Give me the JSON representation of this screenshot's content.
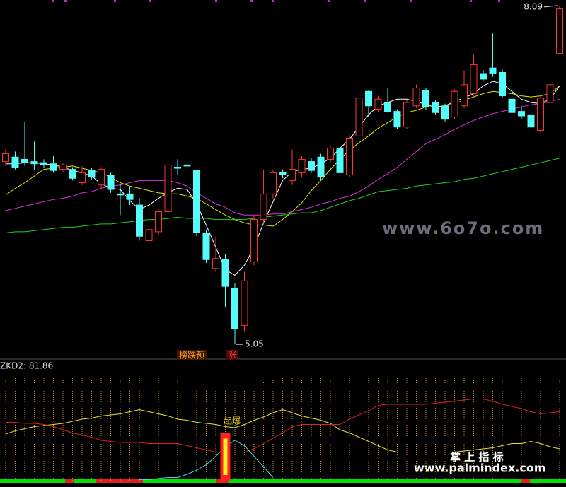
{
  "chart_data": [
    {
      "type": "candlestick",
      "open": [
        6.69,
        6.73,
        6.71,
        6.69,
        6.68,
        6.67,
        6.62,
        6.62,
        6.5,
        6.61,
        6.48,
        6.57,
        6.4,
        6.4,
        6.3,
        5.98,
        6.06,
        6.24,
        6.64,
        6.66,
        6.61,
        6.05,
        5.73,
        5.81,
        5.55,
        5.22,
        5.79,
        6.17,
        6.4,
        6.59,
        6.52,
        6.59,
        6.69,
        6.73,
        6.71,
        6.81,
        6.57,
        6.92,
        7.32,
        7.16,
        7.22,
        7.14,
        7.0,
        7.19,
        7.33,
        7.22,
        7.19,
        7.09,
        7.19,
        7.3,
        7.48,
        7.53,
        7.49,
        7.25,
        7.14,
        7.11,
        6.97,
        7.22,
        7.66
      ],
      "high": [
        6.8,
        6.78,
        7.05,
        6.87,
        6.71,
        6.74,
        6.68,
        6.64,
        6.65,
        6.63,
        6.64,
        6.59,
        6.49,
        6.46,
        6.36,
        6.11,
        6.27,
        6.69,
        6.71,
        6.82,
        6.62,
        6.08,
        6.02,
        5.86,
        5.6,
        5.7,
        6.21,
        6.62,
        6.62,
        6.62,
        6.8,
        6.74,
        6.72,
        6.76,
        6.84,
        7.01,
        6.93,
        7.28,
        7.33,
        7.28,
        7.35,
        7.16,
        7.24,
        7.38,
        7.35,
        7.24,
        7.21,
        7.34,
        7.51,
        7.65,
        7.51,
        7.84,
        7.52,
        7.39,
        7.19,
        7.16,
        7.28,
        7.39,
        8.09
      ],
      "low": [
        6.65,
        6.62,
        6.65,
        6.62,
        6.63,
        6.59,
        6.6,
        6.52,
        6.48,
        6.53,
        6.45,
        6.41,
        6.21,
        6.3,
        5.98,
        5.89,
        6.03,
        6.21,
        6.57,
        6.59,
        6.02,
        5.78,
        5.7,
        5.38,
        5.05,
        5.16,
        5.76,
        6.14,
        6.36,
        6.54,
        6.48,
        6.55,
        6.59,
        6.52,
        6.68,
        6.55,
        6.55,
        6.88,
        7.09,
        7.14,
        7.13,
        6.98,
        6.98,
        7.17,
        7.15,
        7.11,
        7.05,
        7.07,
        7.17,
        7.28,
        7.41,
        7.45,
        7.26,
        7.11,
        7.07,
        6.98,
        6.95,
        7.2,
        7.65
      ],
      "close": [
        6.76,
        6.64,
        6.68,
        6.67,
        6.66,
        6.61,
        6.66,
        6.54,
        6.59,
        6.55,
        6.62,
        6.44,
        6.39,
        6.35,
        6.02,
        6.08,
        6.24,
        6.66,
        6.63,
        6.65,
        6.05,
        5.81,
        5.82,
        5.57,
        5.19,
        5.62,
        6.17,
        6.4,
        6.59,
        6.57,
        6.62,
        6.71,
        6.61,
        6.55,
        6.81,
        6.59,
        6.9,
        7.26,
        7.19,
        7.25,
        7.14,
        7.0,
        7.22,
        7.35,
        7.18,
        7.13,
        7.07,
        7.32,
        7.38,
        7.56,
        7.43,
        7.48,
        7.28,
        7.13,
        7.1,
        7.0,
        7.26,
        7.38,
        8.06
      ],
      "up_color": "#ff3232",
      "down_color": "#54fcfc",
      "ylim": [
        5.0,
        8.14
      ],
      "series": [
        {
          "color": "#ffffff",
          "values": [
            6.67,
            6.67,
            6.68,
            6.68,
            6.67,
            6.66,
            6.64,
            6.61,
            6.59,
            6.56,
            6.49,
            6.45,
            6.44,
            6.34,
            6.26,
            6.3,
            6.36,
            6.41,
            6.45,
            6.44,
            6.31,
            6.12,
            5.92,
            5.72,
            5.67,
            5.76,
            5.92,
            6.14,
            6.33,
            6.52,
            6.6,
            6.62,
            6.63,
            6.67,
            6.72,
            6.81,
            6.89,
            7.0,
            7.11,
            7.19,
            7.22,
            7.25,
            7.25,
            7.23,
            7.2,
            7.18,
            7.19,
            7.23,
            7.26,
            7.3,
            7.37,
            7.41,
            7.39,
            7.32,
            7.25,
            7.22,
            7.21,
            7.25,
            7.37
          ]
        },
        {
          "color": "#e8e800",
          "values": [
            6.39,
            6.45,
            6.5,
            6.56,
            6.62,
            6.63,
            6.64,
            6.65,
            6.63,
            6.61,
            6.59,
            6.55,
            6.5,
            6.47,
            6.45,
            6.43,
            6.41,
            6.4,
            6.4,
            6.38,
            6.36,
            6.31,
            6.26,
            6.21,
            6.17,
            6.14,
            6.12,
            6.12,
            6.11,
            6.17,
            6.24,
            6.32,
            6.43,
            6.52,
            6.62,
            6.71,
            6.79,
            6.86,
            6.92,
            6.99,
            7.04,
            7.09,
            7.13,
            7.15,
            7.18,
            7.18,
            7.19,
            7.21,
            7.24,
            7.27,
            7.3,
            7.32,
            7.31,
            7.3,
            7.28,
            7.27,
            7.28,
            7.3,
            7.37
          ]
        },
        {
          "color": "#e030e0",
          "values": [
            6.25,
            6.27,
            6.29,
            6.31,
            6.33,
            6.35,
            6.36,
            6.38,
            6.41,
            6.42,
            6.45,
            6.47,
            6.48,
            6.5,
            6.52,
            6.52,
            6.52,
            6.52,
            6.5,
            6.47,
            6.41,
            6.36,
            6.31,
            6.28,
            6.23,
            6.21,
            6.21,
            6.21,
            6.22,
            6.22,
            6.24,
            6.26,
            6.28,
            6.31,
            6.33,
            6.36,
            6.38,
            6.42,
            6.47,
            6.53,
            6.58,
            6.64,
            6.71,
            6.78,
            6.85,
            6.89,
            6.93,
            6.98,
            7.02,
            7.06,
            7.09,
            7.12,
            7.14,
            7.16,
            7.18,
            7.2,
            7.21,
            7.23,
            7.25
          ]
        },
        {
          "color": "#20d020",
          "values": [
            6.05,
            6.06,
            6.06,
            6.07,
            6.08,
            6.09,
            6.1,
            6.1,
            6.11,
            6.12,
            6.13,
            6.13,
            6.14,
            6.15,
            6.16,
            6.17,
            6.17,
            6.18,
            6.19,
            6.18,
            6.18,
            6.18,
            6.17,
            6.17,
            6.17,
            6.17,
            6.18,
            6.19,
            6.2,
            6.21,
            6.22,
            6.23,
            6.23,
            6.25,
            6.28,
            6.31,
            6.34,
            6.36,
            6.39,
            6.42,
            6.43,
            6.44,
            6.45,
            6.47,
            6.48,
            6.49,
            6.5,
            6.51,
            6.53,
            6.54,
            6.56,
            6.58,
            6.6,
            6.62,
            6.64,
            6.66,
            6.68,
            6.7,
            6.72
          ]
        }
      ],
      "annotations": [
        "榜跌预",
        "涨"
      ]
    },
    {
      "type": "indicator",
      "title": "ZKD2: 81.86",
      "ylim": [
        0,
        100
      ],
      "series": [
        {
          "type": "bar",
          "color": "#c88a1e",
          "values": [
            96,
            97,
            97,
            96,
            97,
            97,
            96,
            97,
            97,
            96,
            97,
            97,
            96,
            97,
            97,
            96,
            97,
            97,
            95,
            90,
            88,
            86,
            85,
            86,
            88,
            90,
            92,
            94,
            96,
            97,
            97,
            96,
            97,
            97,
            96,
            97,
            97,
            96,
            97,
            97,
            96,
            97,
            97,
            96,
            97,
            97,
            96,
            97,
            97,
            96,
            97,
            97,
            96,
            97,
            97,
            96,
            97,
            97,
            96
          ]
        },
        {
          "type": "line",
          "color": "#e8e030",
          "values": [
            44,
            47,
            49,
            51,
            52,
            53,
            54,
            56,
            58,
            59,
            61,
            62,
            63,
            65,
            67,
            65,
            63,
            61,
            58,
            57,
            55,
            54,
            53,
            51,
            50,
            53,
            57,
            60,
            64,
            67,
            64,
            61,
            59,
            57,
            54,
            48,
            45,
            41,
            37,
            33,
            29,
            27,
            27,
            27,
            27,
            27,
            27,
            27,
            28,
            29,
            30,
            31,
            33,
            35,
            35,
            37,
            35,
            32,
            30
          ]
        },
        {
          "type": "line",
          "color": "#e02020",
          "values": [
            55,
            55,
            54,
            54,
            53,
            51,
            48,
            45,
            43,
            41,
            38,
            37,
            36,
            36,
            36,
            35,
            35,
            35,
            35,
            33,
            31,
            29,
            27,
            27,
            27,
            27,
            30,
            35,
            40,
            45,
            51,
            53,
            53,
            53,
            53,
            53,
            58,
            62,
            66,
            71,
            72,
            72,
            72,
            72,
            72,
            73,
            74,
            75,
            76,
            77,
            77,
            75,
            72,
            70,
            68,
            65,
            63,
            64,
            65
          ]
        },
        {
          "type": "line",
          "color": "#40d8e8",
          "values": [
            null,
            null,
            null,
            null,
            null,
            null,
            null,
            null,
            null,
            null,
            null,
            null,
            null,
            null,
            1,
            1,
            2,
            3,
            3,
            6,
            10,
            15,
            23,
            32,
            38,
            33,
            23,
            13,
            3,
            null,
            null,
            null,
            null,
            null,
            null,
            null,
            null,
            null,
            null,
            null,
            null,
            null,
            null,
            null,
            null,
            null,
            null,
            null,
            null,
            null,
            null,
            null,
            null,
            null,
            null,
            null,
            null,
            null,
            null
          ]
        },
        {
          "type": "signal",
          "color": "#ff2020",
          "values": [
            null,
            null,
            null,
            null,
            null,
            null,
            null,
            null,
            null,
            null,
            null,
            null,
            null,
            null,
            null,
            null,
            null,
            null,
            null,
            null,
            null,
            null,
            null,
            45,
            null,
            null,
            null,
            null,
            null,
            null,
            null,
            null,
            null,
            null,
            null,
            null,
            null,
            null,
            null,
            null,
            null,
            null,
            null,
            null,
            null,
            null,
            null,
            null,
            null,
            null,
            null,
            null,
            null,
            null,
            null,
            null,
            null,
            null,
            null
          ]
        }
      ],
      "annotations": [
        "起爆"
      ]
    }
  ],
  "watermarks": [
    "www.6o7o.com",
    "掌 上 指 标",
    "www.palmindex.com"
  ]
}
